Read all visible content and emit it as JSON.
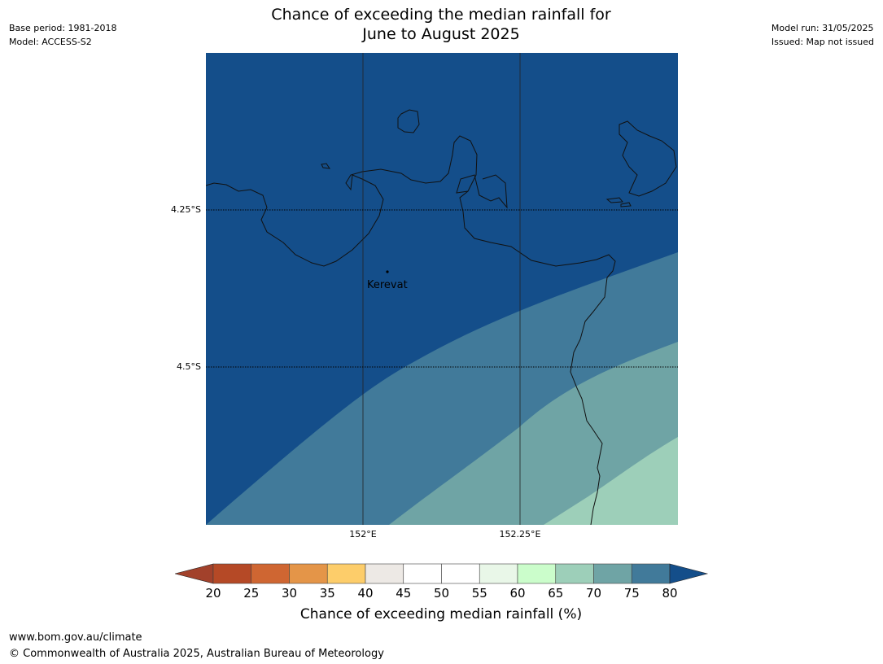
{
  "header": {
    "base_period": "Base period: 1981-2018",
    "model": "Model: ACCESS-S2",
    "model_run": "Model run: 31/05/2025",
    "issued": "Issued: Map not issued",
    "title_line1": "Chance of exceeding the median rainfall for",
    "title_line2": "June to August 2025"
  },
  "map": {
    "lat_labels": [
      "4.25°S",
      "4.5°S"
    ],
    "lon_labels": [
      "152°E",
      "152.25°E"
    ],
    "place": "Kerevat",
    "colors": {
      "band_80_plus": "#144e8a",
      "band_75_80": "#417a9a",
      "band_70_75": "#6fa4a5",
      "band_65_70": "#9dcfb9"
    }
  },
  "legend": {
    "label": "Chance of exceeding median rainfall (%)",
    "ticks": [
      "20",
      "25",
      "30",
      "35",
      "40",
      "45",
      "50",
      "55",
      "60",
      "65",
      "70",
      "75",
      "80"
    ],
    "colors": [
      "#a2412b",
      "#b54926",
      "#cf6632",
      "#e49548",
      "#fdcd6a",
      "#ede9e5",
      "#ffffff",
      "#ffffff",
      "#e9f7e8",
      "#cbfdcb",
      "#9dcfb9",
      "#6fa4a5",
      "#417a9a",
      "#144e8a"
    ]
  },
  "footer": {
    "url": "www.bom.gov.au/climate",
    "copyright": "© Commonwealth of Australia 2025, Australian Bureau of Meteorology"
  }
}
